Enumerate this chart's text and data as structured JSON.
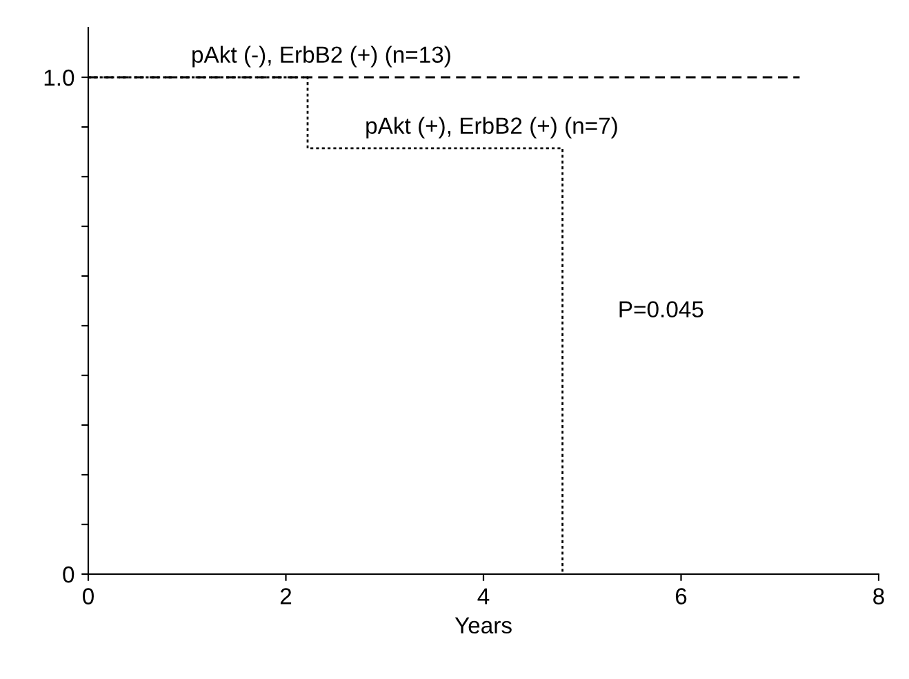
{
  "chart_data": {
    "type": "step",
    "xlabel": "Years",
    "series": [
      {
        "name": "pAkt (-), ErbB2 (+) (n=13)",
        "color": "#000000",
        "line_style": "dashed",
        "x": [
          0,
          7.2
        ],
        "values": [
          1.0,
          1.0
        ]
      },
      {
        "name": "pAkt (+), ErbB2 (+) (n=7)",
        "color": "#000000",
        "line_style": "dotted",
        "x": [
          0,
          2.22,
          4.8
        ],
        "values": [
          1.0,
          0.857,
          0
        ]
      }
    ],
    "xlim": [
      0,
      8
    ],
    "xticks": [
      0,
      2,
      4,
      6,
      8
    ],
    "ylim": [
      0,
      1.1
    ],
    "yticks": [
      {
        "value": 0,
        "label": "0"
      },
      {
        "value": 0.1,
        "label": null
      },
      {
        "value": 0.2,
        "label": null
      },
      {
        "value": 0.3,
        "label": null
      },
      {
        "value": 0.4,
        "label": null
      },
      {
        "value": 0.5,
        "label": null
      },
      {
        "value": 0.6,
        "label": null
      },
      {
        "value": 0.7,
        "label": null
      },
      {
        "value": 0.8,
        "label": null
      },
      {
        "value": 0.9,
        "label": null
      },
      {
        "value": 1.0,
        "label": "1.0"
      }
    ],
    "annotations": [
      "P=0.045"
    ],
    "grid": false,
    "legend": false
  }
}
